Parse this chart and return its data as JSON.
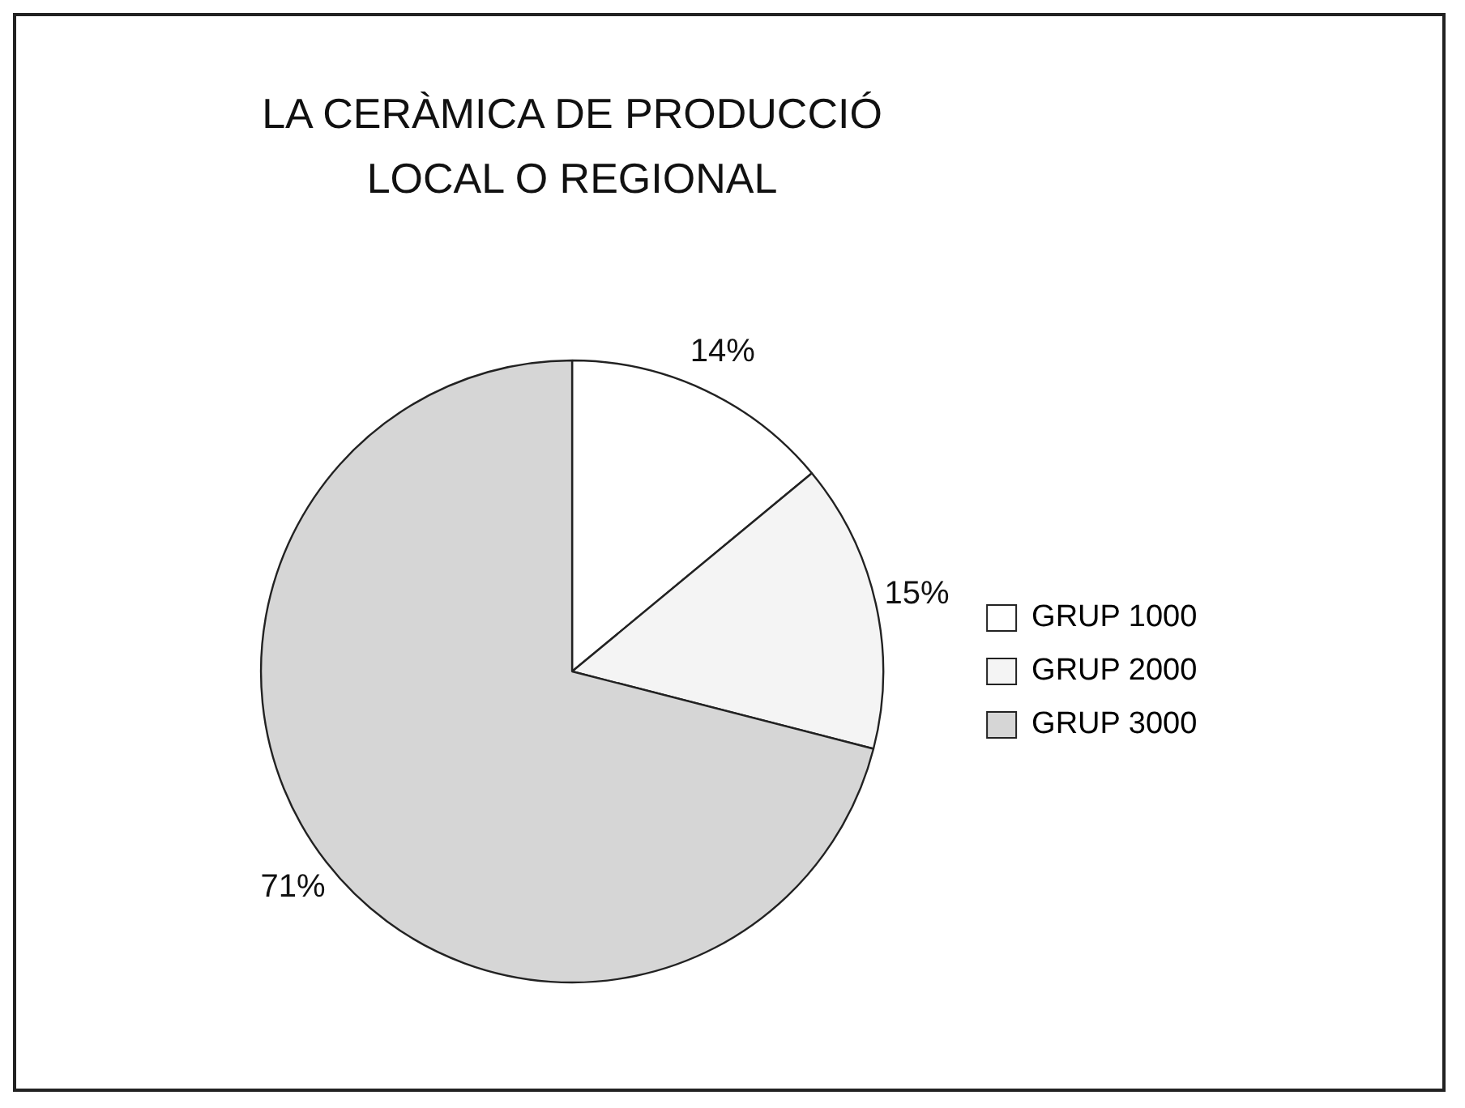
{
  "chart_data": {
    "type": "pie",
    "title": "LA CERÀMICA DE PRODUCCIÓ LOCAL O REGIONAL",
    "categories": [
      "GRUP 1000",
      "GRUP 2000",
      "GRUP 3000"
    ],
    "values": [
      14,
      15,
      71
    ],
    "colors": [
      "#ffffff",
      "#f4f4f4",
      "#d6d6d6"
    ],
    "value_labels": [
      "14%",
      "15%",
      "71%"
    ],
    "legend": "right"
  }
}
